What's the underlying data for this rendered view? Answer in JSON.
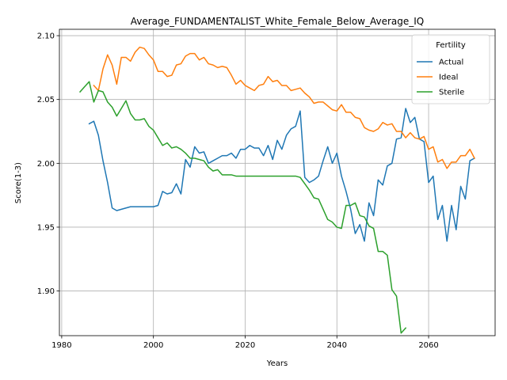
{
  "chart_data": {
    "type": "line",
    "title": "Average_FUNDAMENTALIST_White_Female_Below_Average_IQ",
    "xlabel": "Years",
    "ylabel": "Score(1-3)",
    "xlim": [
      1979.5,
      2074.5
    ],
    "ylim": [
      1.865,
      2.105
    ],
    "xticks": [
      1980,
      2000,
      2020,
      2040,
      2060
    ],
    "yticks": [
      1.9,
      1.95,
      2.0,
      2.05,
      2.1
    ],
    "ytick_labels": [
      "1.90",
      "1.95",
      "2.00",
      "2.05",
      "2.10"
    ],
    "grid": true,
    "legend": {
      "title": "Fertility",
      "placement": "top-right"
    },
    "series": [
      {
        "name": "Actual",
        "color": "#1f77b4",
        "x": [
          1986,
          1987,
          1988,
          1989,
          1990,
          1991,
          1992,
          1993,
          1994,
          1995,
          1996,
          1997,
          1998,
          1999,
          2000,
          2001,
          2002,
          2003,
          2004,
          2005,
          2006,
          2007,
          2008,
          2009,
          2010,
          2011,
          2012,
          2013,
          2014,
          2015,
          2016,
          2017,
          2018,
          2019,
          2020,
          2021,
          2022,
          2023,
          2024,
          2025,
          2026,
          2027,
          2028,
          2029,
          2030,
          2031,
          2032,
          2033,
          2034,
          2035,
          2036,
          2037,
          2038,
          2039,
          2040,
          2041,
          2042,
          2043,
          2044,
          2045,
          2046,
          2047,
          2048,
          2049,
          2050,
          2051,
          2052,
          2053,
          2054,
          2055,
          2056,
          2057,
          2058,
          2059,
          2060,
          2061,
          2062,
          2063,
          2064,
          2065,
          2066,
          2067,
          2068,
          2069,
          2070
        ],
        "values": [
          2.031,
          2.033,
          2.022,
          2.002,
          1.985,
          1.965,
          1.963,
          1.964,
          1.965,
          1.966,
          1.966,
          1.966,
          1.966,
          1.966,
          1.966,
          1.967,
          1.978,
          1.976,
          1.977,
          1.984,
          1.976,
          2.003,
          1.997,
          2.013,
          2.008,
          2.009,
          2.0,
          2.002,
          2.004,
          2.006,
          2.006,
          2.008,
          2.004,
          2.011,
          2.011,
          2.014,
          2.012,
          2.012,
          2.006,
          2.014,
          2.003,
          2.018,
          2.011,
          2.022,
          2.027,
          2.029,
          2.041,
          1.989,
          1.985,
          1.987,
          1.99,
          2.002,
          2.013,
          2.0,
          2.008,
          1.99,
          1.978,
          1.964,
          1.945,
          1.952,
          1.939,
          1.969,
          1.959,
          1.987,
          1.983,
          1.998,
          2.0,
          2.019,
          2.02,
          2.043,
          2.032,
          2.036,
          2.019,
          2.017,
          1.985,
          1.99,
          1.956,
          1.967,
          1.939,
          1.967,
          1.948,
          1.982,
          1.972,
          2.002,
          2.004
        ]
      },
      {
        "name": "Ideal",
        "color": "#ff7f0e",
        "x": [
          1987,
          1988,
          1989,
          1990,
          1991,
          1992,
          1993,
          1994,
          1995,
          1996,
          1997,
          1998,
          1999,
          2000,
          2001,
          2002,
          2003,
          2004,
          2005,
          2006,
          2007,
          2008,
          2009,
          2010,
          2011,
          2012,
          2013,
          2014,
          2015,
          2016,
          2017,
          2018,
          2019,
          2020,
          2021,
          2022,
          2023,
          2024,
          2025,
          2026,
          2027,
          2028,
          2029,
          2030,
          2031,
          2032,
          2033,
          2034,
          2035,
          2036,
          2037,
          2038,
          2039,
          2040,
          2041,
          2042,
          2043,
          2044,
          2045,
          2046,
          2047,
          2048,
          2049,
          2050,
          2051,
          2052,
          2053,
          2054,
          2055,
          2056,
          2057,
          2058,
          2059,
          2060,
          2061,
          2062,
          2063,
          2064,
          2065,
          2066,
          2067,
          2068,
          2069,
          2070
        ],
        "values": [
          2.061,
          2.057,
          2.074,
          2.085,
          2.077,
          2.062,
          2.083,
          2.083,
          2.08,
          2.087,
          2.091,
          2.09,
          2.085,
          2.081,
          2.072,
          2.072,
          2.068,
          2.069,
          2.077,
          2.078,
          2.084,
          2.086,
          2.086,
          2.081,
          2.083,
          2.078,
          2.077,
          2.075,
          2.076,
          2.075,
          2.069,
          2.062,
          2.065,
          2.061,
          2.059,
          2.057,
          2.061,
          2.062,
          2.068,
          2.064,
          2.065,
          2.061,
          2.061,
          2.057,
          2.058,
          2.059,
          2.055,
          2.052,
          2.047,
          2.048,
          2.048,
          2.045,
          2.042,
          2.041,
          2.046,
          2.04,
          2.04,
          2.036,
          2.035,
          2.028,
          2.026,
          2.025,
          2.027,
          2.032,
          2.03,
          2.031,
          2.025,
          2.025,
          2.02,
          2.024,
          2.02,
          2.019,
          2.021,
          2.011,
          2.013,
          2.001,
          2.003,
          1.996,
          2.001,
          2.001,
          2.006,
          2.006,
          2.011,
          2.004
        ]
      },
      {
        "name": "Sterile",
        "color": "#2ca02c",
        "x": [
          1984,
          1985,
          1986,
          1987,
          1988,
          1989,
          1990,
          1991,
          1992,
          1993,
          1994,
          1995,
          1996,
          1997,
          1998,
          1999,
          2000,
          2001,
          2002,
          2003,
          2004,
          2005,
          2006,
          2007,
          2008,
          2009,
          2010,
          2011,
          2012,
          2013,
          2014,
          2015,
          2016,
          2017,
          2018,
          2019,
          2020,
          2021,
          2022,
          2023,
          2024,
          2025,
          2026,
          2027,
          2028,
          2029,
          2030,
          2031,
          2032,
          2033,
          2034,
          2035,
          2036,
          2037,
          2038,
          2039,
          2040,
          2041,
          2042,
          2043,
          2044,
          2045,
          2046,
          2047,
          2048,
          2049,
          2050,
          2051,
          2052,
          2053,
          2054,
          2055
        ],
        "values": [
          2.056,
          2.06,
          2.064,
          2.048,
          2.057,
          2.056,
          2.048,
          2.044,
          2.037,
          2.043,
          2.049,
          2.039,
          2.034,
          2.034,
          2.035,
          2.029,
          2.026,
          2.02,
          2.014,
          2.016,
          2.012,
          2.013,
          2.011,
          2.008,
          2.004,
          2.004,
          2.003,
          2.002,
          1.997,
          1.994,
          1.995,
          1.991,
          1.991,
          1.991,
          1.99,
          1.99,
          1.99,
          1.99,
          1.99,
          1.99,
          1.99,
          1.99,
          1.99,
          1.99,
          1.99,
          1.99,
          1.99,
          1.99,
          1.989,
          1.984,
          1.979,
          1.973,
          1.972,
          1.964,
          1.956,
          1.954,
          1.95,
          1.949,
          1.967,
          1.967,
          1.969,
          1.959,
          1.958,
          1.951,
          1.949,
          1.931,
          1.931,
          1.928,
          1.901,
          1.896,
          1.867,
          1.871
        ]
      }
    ]
  }
}
